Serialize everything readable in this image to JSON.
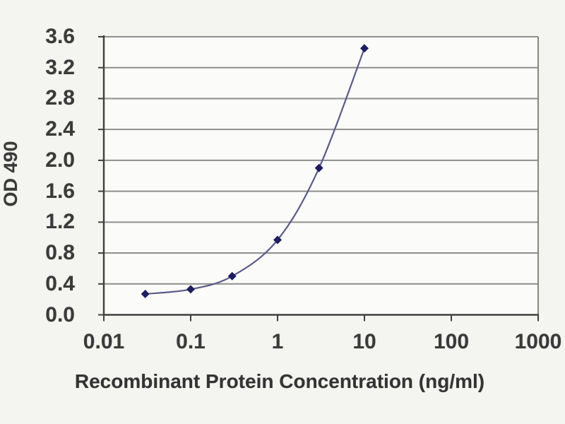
{
  "chart_data": {
    "type": "line",
    "title": "",
    "xlabel": "Recombinant Protein Concentration (ng/ml)",
    "ylabel": "OD 490",
    "x_scale": "log",
    "xlim": [
      0.01,
      1000
    ],
    "ylim": [
      0,
      3.6
    ],
    "x_tick_values": [
      0.01,
      0.1,
      1,
      10,
      100,
      1000
    ],
    "x_tick_labels": [
      "0.01",
      "0.1",
      "1",
      "10",
      "100",
      "1000"
    ],
    "y_tick_values": [
      0,
      0.4,
      0.8,
      1.2,
      1.6,
      2.0,
      2.4,
      2.8,
      3.2,
      3.6
    ],
    "y_tick_labels": [
      "0.0",
      "0.4",
      "0.8",
      "1.2",
      "1.6",
      "2.0",
      "2.4",
      "2.8",
      "3.2",
      "3.6"
    ],
    "grid": "horizontal",
    "legend": "none",
    "series": [
      {
        "name": "OD 490",
        "marker": "diamond",
        "marker_color": "#1e1e62",
        "line_color": "#5b5b8a",
        "x": [
          0.03,
          0.1,
          0.3,
          1,
          3,
          10
        ],
        "y": [
          0.27,
          0.33,
          0.5,
          0.97,
          1.9,
          3.45
        ]
      }
    ]
  },
  "colors": {
    "background": "#f4f4f1",
    "plot_background": "#fbfbf9",
    "gridline": "#8e8e8e",
    "axis": "#3f3f3f",
    "right_border": "#858585",
    "label_text": "#3a3a3a"
  }
}
